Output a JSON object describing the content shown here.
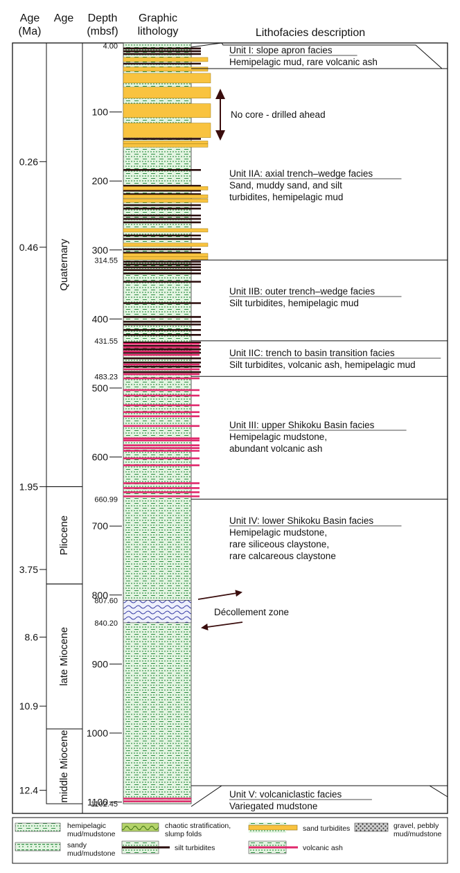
{
  "headers": {
    "age_ma": [
      "Age",
      "(Ma)"
    ],
    "age": "Age",
    "depth": [
      "Depth",
      "(mbsf)"
    ],
    "lithology": [
      "Graphic",
      "lithology"
    ],
    "description": "Lithofacies description"
  },
  "age_ticks": [
    {
      "label": "0.26",
      "depth": 172
    },
    {
      "label": "0.46",
      "depth": 296
    },
    {
      "label": "1.95",
      "depth": 643
    },
    {
      "label": "3.75",
      "depth": 763
    },
    {
      "label": "8.6",
      "depth": 861
    },
    {
      "label": "10.9",
      "depth": 961
    },
    {
      "label": "12.4",
      "depth": 1083
    }
  ],
  "age_intervals": [
    {
      "label": "Quaternary",
      "top": 0,
      "bottom": 643
    },
    {
      "label": "Pliocene",
      "top": 643,
      "bottom": 784
    },
    {
      "label": "late Miocene",
      "top": 784,
      "bottom": 994
    },
    {
      "label": "middle Miocene",
      "top": 994,
      "bottom": 1102.45
    }
  ],
  "depth_ticks": [
    "100",
    "200",
    "300",
    "400",
    "500",
    "600",
    "700",
    "800",
    "900",
    "1000",
    "1100"
  ],
  "boundary_depths": [
    {
      "label": "4.00",
      "depth": 4.0
    },
    {
      "label": "314.55",
      "depth": 314.55
    },
    {
      "label": "431.55",
      "depth": 431.55
    },
    {
      "label": "483.23",
      "depth": 483.23
    },
    {
      "label": "660.99",
      "depth": 660.99
    },
    {
      "label": "807.60",
      "depth": 807.6
    },
    {
      "label": "840.20",
      "depth": 840.2
    },
    {
      "label": "1102.45",
      "depth": 1102.45
    }
  ],
  "units": [
    {
      "title": "Unit I: slope apron facies",
      "lines": [
        "Hemipelagic mud, rare volcanic ash"
      ]
    },
    {
      "title": "Unit IIA: axial trench–wedge facies",
      "lines": [
        "Sand, muddy sand, and silt",
        "turbidites, hemipelagic mud"
      ]
    },
    {
      "title": "Unit IIB: outer trench–wedge facies",
      "lines": [
        "Silt turbidites, hemipelagic mud"
      ]
    },
    {
      "title": "Unit IIC: trench to basin transition facies",
      "lines": [
        "Silt turbidites, volcanic ash, hemipelagic mud"
      ]
    },
    {
      "title": "Unit III: upper Shikoku Basin facies",
      "lines": [
        "Hemipelagic mudstone,",
        "abundant volcanic ash"
      ]
    },
    {
      "title": "Unit IV: lower Shikoku Basin facies",
      "lines": [
        "Hemipelagic mudstone,",
        "rare siliceous claystone,",
        "rare calcareous claystone"
      ]
    },
    {
      "title": "Unit V: volcaniclastic facies",
      "lines": [
        "Variegated mudstone"
      ]
    }
  ],
  "annotations": {
    "no_core": "No core - drilled ahead",
    "decollement": "Décollement zone"
  },
  "legend": [
    {
      "label": [
        "hemipelagic",
        "mud/mudstone"
      ],
      "pattern": "hemipelagic"
    },
    {
      "label": [
        "chaotic stratification,",
        "slump folds"
      ],
      "pattern": "chaotic"
    },
    {
      "label": [
        "sand turbidites"
      ],
      "pattern": "sand"
    },
    {
      "label": [
        "gravel, pebbly",
        "mud/mudstone"
      ],
      "pattern": "gravel"
    },
    {
      "label": [
        "sandy",
        "mud/mudstone"
      ],
      "pattern": "sandy"
    },
    {
      "label": [
        "silt turbidites"
      ],
      "pattern": "silt"
    },
    {
      "label": [
        "volcanic ash"
      ],
      "pattern": "ash"
    }
  ],
  "colors": {
    "hemipelagic_bg": "#e3f4e1",
    "hemipelagic_dots": "#2f8f44",
    "sand": "#f9c33f",
    "silt": "#2a0c0c",
    "ash": "#e0276b",
    "decollement": "#3a3fa8",
    "chaotic": "#b4d36a"
  }
}
